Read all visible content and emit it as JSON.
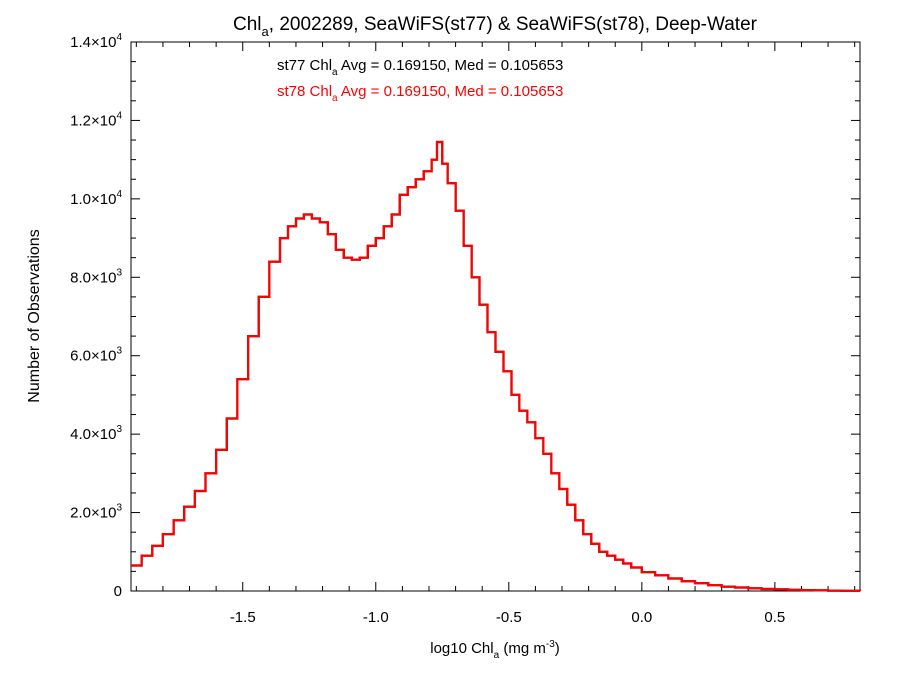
{
  "chart_data": {
    "type": "line",
    "title": {
      "prefix": "Chl",
      "sub": "a",
      "rest": ", 2002289, SeaWiFS(st77) & SeaWiFS(st78), Deep-Water"
    },
    "xlabel": {
      "prefix": "log10 Chl",
      "sub": "a",
      "mid": " (mg m",
      "sup": "-3",
      "suffix": ")"
    },
    "ylabel": "Number of Observations",
    "xlim": [
      -1.92,
      0.82
    ],
    "ylim": [
      0,
      14000
    ],
    "x_ticks": [
      {
        "value": -1.5,
        "label": "-1.5"
      },
      {
        "value": -1.0,
        "label": "-1.0"
      },
      {
        "value": -0.5,
        "label": "-0.5"
      },
      {
        "value": 0.0,
        "label": "0.0"
      },
      {
        "value": 0.5,
        "label": "0.5"
      }
    ],
    "y_ticks": [
      {
        "value": 0,
        "mant": "0",
        "exp": ""
      },
      {
        "value": 2000,
        "mant": "2.0×10",
        "exp": "3"
      },
      {
        "value": 4000,
        "mant": "4.0×10",
        "exp": "3"
      },
      {
        "value": 6000,
        "mant": "6.0×10",
        "exp": "3"
      },
      {
        "value": 8000,
        "mant": "8.0×10",
        "exp": "3"
      },
      {
        "value": 10000,
        "mant": "1.0×10",
        "exp": "4"
      },
      {
        "value": 12000,
        "mant": "1.2×10",
        "exp": "4"
      },
      {
        "value": 14000,
        "mant": "1.4×10",
        "exp": "4"
      }
    ],
    "annotations": [
      {
        "series": "st77",
        "pre": "st77 Chl",
        "sub": "a",
        "post": " Avg = 0.169150, Med = 0.105653",
        "color": "#000000"
      },
      {
        "series": "st78",
        "pre": "st78 Chl",
        "sub": "a",
        "post": " Avg = 0.169150, Med = 0.105653",
        "color": "#ff0000"
      }
    ],
    "series": [
      {
        "name": "st77",
        "color": "#000000",
        "x": [
          -1.92,
          -1.88,
          -1.84,
          -1.8,
          -1.76,
          -1.72,
          -1.68,
          -1.64,
          -1.6,
          -1.56,
          -1.52,
          -1.48,
          -1.44,
          -1.4,
          -1.36,
          -1.33,
          -1.3,
          -1.27,
          -1.24,
          -1.21,
          -1.18,
          -1.15,
          -1.12,
          -1.09,
          -1.06,
          -1.03,
          -1.0,
          -0.97,
          -0.94,
          -0.91,
          -0.88,
          -0.85,
          -0.82,
          -0.79,
          -0.77,
          -0.75,
          -0.73,
          -0.7,
          -0.67,
          -0.64,
          -0.61,
          -0.58,
          -0.55,
          -0.52,
          -0.49,
          -0.46,
          -0.43,
          -0.4,
          -0.37,
          -0.34,
          -0.31,
          -0.28,
          -0.25,
          -0.22,
          -0.19,
          -0.16,
          -0.13,
          -0.1,
          -0.07,
          -0.04,
          0.0,
          0.05,
          0.1,
          0.15,
          0.2,
          0.25,
          0.3,
          0.35,
          0.4,
          0.45,
          0.5,
          0.55,
          0.6,
          0.65,
          0.7,
          0.75,
          0.82
        ],
        "y": [
          650,
          900,
          1150,
          1450,
          1800,
          2150,
          2550,
          3000,
          3600,
          4400,
          5400,
          6500,
          7500,
          8400,
          9000,
          9300,
          9500,
          9600,
          9500,
          9400,
          9100,
          8700,
          8500,
          8450,
          8500,
          8800,
          9000,
          9300,
          9600,
          10100,
          10300,
          10500,
          10700,
          11000,
          11450,
          10900,
          10400,
          9700,
          8800,
          8000,
          7300,
          6600,
          6100,
          5600,
          5000,
          4600,
          4300,
          3900,
          3500,
          3000,
          2600,
          2200,
          1800,
          1450,
          1200,
          1000,
          900,
          800,
          700,
          600,
          480,
          400,
          320,
          250,
          200,
          150,
          110,
          90,
          70,
          50,
          40,
          30,
          20,
          15,
          10,
          5,
          0
        ]
      },
      {
        "name": "st78",
        "color": "#ff0000",
        "x": [
          -1.92,
          -1.88,
          -1.84,
          -1.8,
          -1.76,
          -1.72,
          -1.68,
          -1.64,
          -1.6,
          -1.56,
          -1.52,
          -1.48,
          -1.44,
          -1.4,
          -1.36,
          -1.33,
          -1.3,
          -1.27,
          -1.24,
          -1.21,
          -1.18,
          -1.15,
          -1.12,
          -1.09,
          -1.06,
          -1.03,
          -1.0,
          -0.97,
          -0.94,
          -0.91,
          -0.88,
          -0.85,
          -0.82,
          -0.79,
          -0.77,
          -0.75,
          -0.73,
          -0.7,
          -0.67,
          -0.64,
          -0.61,
          -0.58,
          -0.55,
          -0.52,
          -0.49,
          -0.46,
          -0.43,
          -0.4,
          -0.37,
          -0.34,
          -0.31,
          -0.28,
          -0.25,
          -0.22,
          -0.19,
          -0.16,
          -0.13,
          -0.1,
          -0.07,
          -0.04,
          0.0,
          0.05,
          0.1,
          0.15,
          0.2,
          0.25,
          0.3,
          0.35,
          0.4,
          0.45,
          0.5,
          0.55,
          0.6,
          0.65,
          0.7,
          0.75,
          0.82
        ],
        "y": [
          650,
          900,
          1150,
          1450,
          1800,
          2150,
          2550,
          3000,
          3600,
          4400,
          5400,
          6500,
          7500,
          8400,
          9000,
          9300,
          9500,
          9600,
          9500,
          9400,
          9100,
          8700,
          8500,
          8450,
          8500,
          8800,
          9000,
          9300,
          9600,
          10100,
          10300,
          10500,
          10700,
          11000,
          11450,
          10900,
          10400,
          9700,
          8800,
          8000,
          7300,
          6600,
          6100,
          5600,
          5000,
          4600,
          4300,
          3900,
          3500,
          3000,
          2600,
          2200,
          1800,
          1450,
          1200,
          1000,
          900,
          800,
          700,
          600,
          480,
          400,
          320,
          250,
          200,
          150,
          110,
          90,
          70,
          50,
          40,
          30,
          20,
          15,
          10,
          5,
          0
        ]
      }
    ]
  }
}
